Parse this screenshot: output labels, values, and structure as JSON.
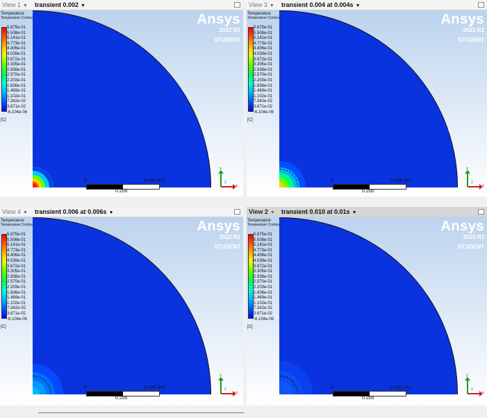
{
  "views": [
    {
      "name": "View 1",
      "title": "transient 0.002",
      "active": false,
      "hotspot": [
        {
          "r": 30,
          "color": "#0050ff"
        },
        {
          "r": 24,
          "color": "#00c8ff"
        },
        {
          "r": 18,
          "color": "#66ff00"
        },
        {
          "r": 13,
          "color": "#ffd000"
        },
        {
          "r": 9,
          "color": "#ff5a00"
        },
        {
          "r": 6,
          "color": "#ff1a00"
        }
      ]
    },
    {
      "name": "View 3",
      "title": "transient 0.004 at 0.004s",
      "active": false,
      "hotspot": [
        {
          "r": 38,
          "color": "#0050ff"
        },
        {
          "r": 29,
          "color": "#00b8ff"
        },
        {
          "r": 21,
          "color": "#00ff7a"
        },
        {
          "r": 14,
          "color": "#66ff00"
        },
        {
          "r": 8,
          "color": "#ffd000"
        }
      ]
    },
    {
      "name": "View 4",
      "title": "transient 0.006 at 0.006s",
      "active": false,
      "hotspot": [
        {
          "r": 44,
          "color": "#0848ff"
        },
        {
          "r": 32,
          "color": "#0070ff"
        },
        {
          "r": 20,
          "color": "#0098ff"
        },
        {
          "r": 10,
          "color": "#00b8ff"
        }
      ]
    },
    {
      "name": "View 2",
      "title": "transient 0.010 at 0.01s",
      "active": true,
      "hotspot": [
        {
          "r": 48,
          "color": "#0a40f0"
        },
        {
          "r": 34,
          "color": "#0b4cf4"
        },
        {
          "r": 20,
          "color": "#0e58f6"
        }
      ]
    }
  ],
  "legend": {
    "title": "Temperature",
    "subtitle": "Temperature Contour",
    "ticks": [
      "5.875e-01",
      "5.508e-01",
      "5.141e-01",
      "4.773e-01",
      "4.406e-01",
      "4.039e-01",
      "3.672e-01",
      "3.305e-01",
      "2.938e-01",
      "2.570e-01",
      "2.203e-01",
      "1.836e-01",
      "1.469e-01",
      "1.102e-01",
      "7.342e-02",
      "3.671e-02",
      "-6.104e-06"
    ],
    "unit": "[C]"
  },
  "logo": {
    "brand": "Ansys",
    "version": "2022 R2",
    "edition": "STUDENT"
  },
  "scale_bar": {
    "start": "0",
    "end": "0.400",
    "unit": "(m)",
    "mid": "0.200"
  },
  "triad": {
    "x": "x",
    "y": "y",
    "z": "z"
  },
  "colors": {
    "field": "#0a33e0",
    "active_header": "#d6d6d6"
  }
}
